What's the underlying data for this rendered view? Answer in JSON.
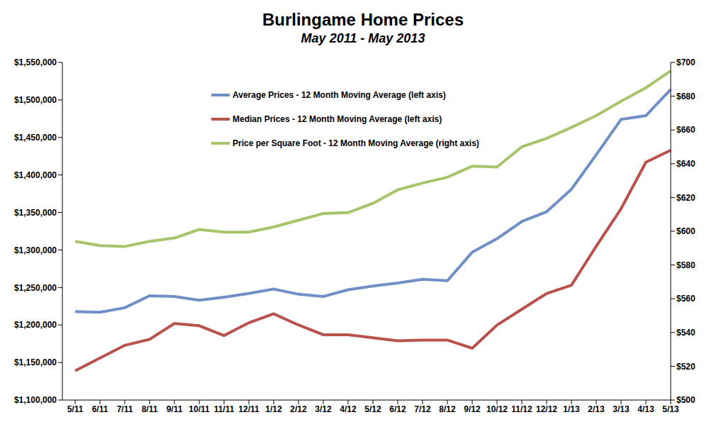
{
  "chart_data": {
    "type": "line",
    "title": "Burlingame Home Prices",
    "subtitle": "May 2011 - May 2013",
    "categories": [
      "5/11",
      "6/11",
      "7/11",
      "8/11",
      "9/11",
      "10/11",
      "11/11",
      "12/11",
      "1/12",
      "2/12",
      "3/12",
      "4/12",
      "5/12",
      "6/12",
      "7/12",
      "8/12",
      "9/12",
      "10/12",
      "11/12",
      "12/12",
      "1/13",
      "2/13",
      "3/13",
      "4/13",
      "5/13"
    ],
    "series": [
      {
        "name": "Average Prices - 12 Month Moving Average (left axis)",
        "color": "#6f8fc6",
        "values": [
          1218000,
          1217000,
          1223000,
          1239000,
          1238000,
          1233000,
          1237000,
          1242000,
          1248000,
          1241000,
          1238000,
          1247000,
          1252000,
          1256000,
          1261000,
          1259000,
          1297000,
          1315000,
          1338000,
          1351000,
          1381000,
          1427000,
          1474000,
          1479000,
          1514000
        ]
      },
      {
        "name": "Median Prices - 12 Month Moving Average (left axis)",
        "color": "#b9514d",
        "values": [
          1139000,
          1156000,
          1173000,
          1181000,
          1202000,
          1199000,
          1186000,
          1203000,
          1215000,
          1200000,
          1187000,
          1187000,
          1183000,
          1179000,
          1180000,
          1180000,
          1169000,
          1200000,
          1221000,
          1242000,
          1253000,
          1305000,
          1355000,
          1417000,
          1433000
        ]
      },
      {
        "name": "Price per Square Foot - 12 Month Moving Average (right axis)",
        "color": "#a8c46b",
        "axis": "y2",
        "values": [
          594,
          591.5,
          591,
          594,
          596,
          601,
          599.5,
          599.5,
          602.5,
          606.5,
          610.5,
          611,
          616.5,
          624.5,
          628.5,
          632,
          638.5,
          638,
          650,
          655,
          661.5,
          668.5,
          677,
          685,
          695
        ]
      }
    ],
    "ylim": [
      1100000,
      1550000
    ],
    "yticks": [
      {
        "value": 1100000,
        "label": "$1,100,000"
      },
      {
        "value": 1150000,
        "label": "$1,150,000"
      },
      {
        "value": 1200000,
        "label": "$1,200,000"
      },
      {
        "value": 1250000,
        "label": "$1,250,000"
      },
      {
        "value": 1300000,
        "label": "$1,300,000"
      },
      {
        "value": 1350000,
        "label": "$1,350,000"
      },
      {
        "value": 1400000,
        "label": "$1,400,000"
      },
      {
        "value": 1450000,
        "label": "$1,450,000"
      },
      {
        "value": 1500000,
        "label": "$1,500,000"
      },
      {
        "value": 1550000,
        "label": "$1,550,000"
      }
    ],
    "y2lim": [
      500,
      700
    ],
    "y2ticks": [
      {
        "value": 500,
        "label": "$500"
      },
      {
        "value": 520,
        "label": "$520"
      },
      {
        "value": 540,
        "label": "$540"
      },
      {
        "value": 560,
        "label": "$560"
      },
      {
        "value": 580,
        "label": "$580"
      },
      {
        "value": 600,
        "label": "$600"
      },
      {
        "value": 620,
        "label": "$620"
      },
      {
        "value": 640,
        "label": "$640"
      },
      {
        "value": 660,
        "label": "$660"
      },
      {
        "value": 680,
        "label": "$680"
      },
      {
        "value": 700,
        "label": "$700"
      }
    ],
    "grid": false,
    "legend": "top"
  }
}
